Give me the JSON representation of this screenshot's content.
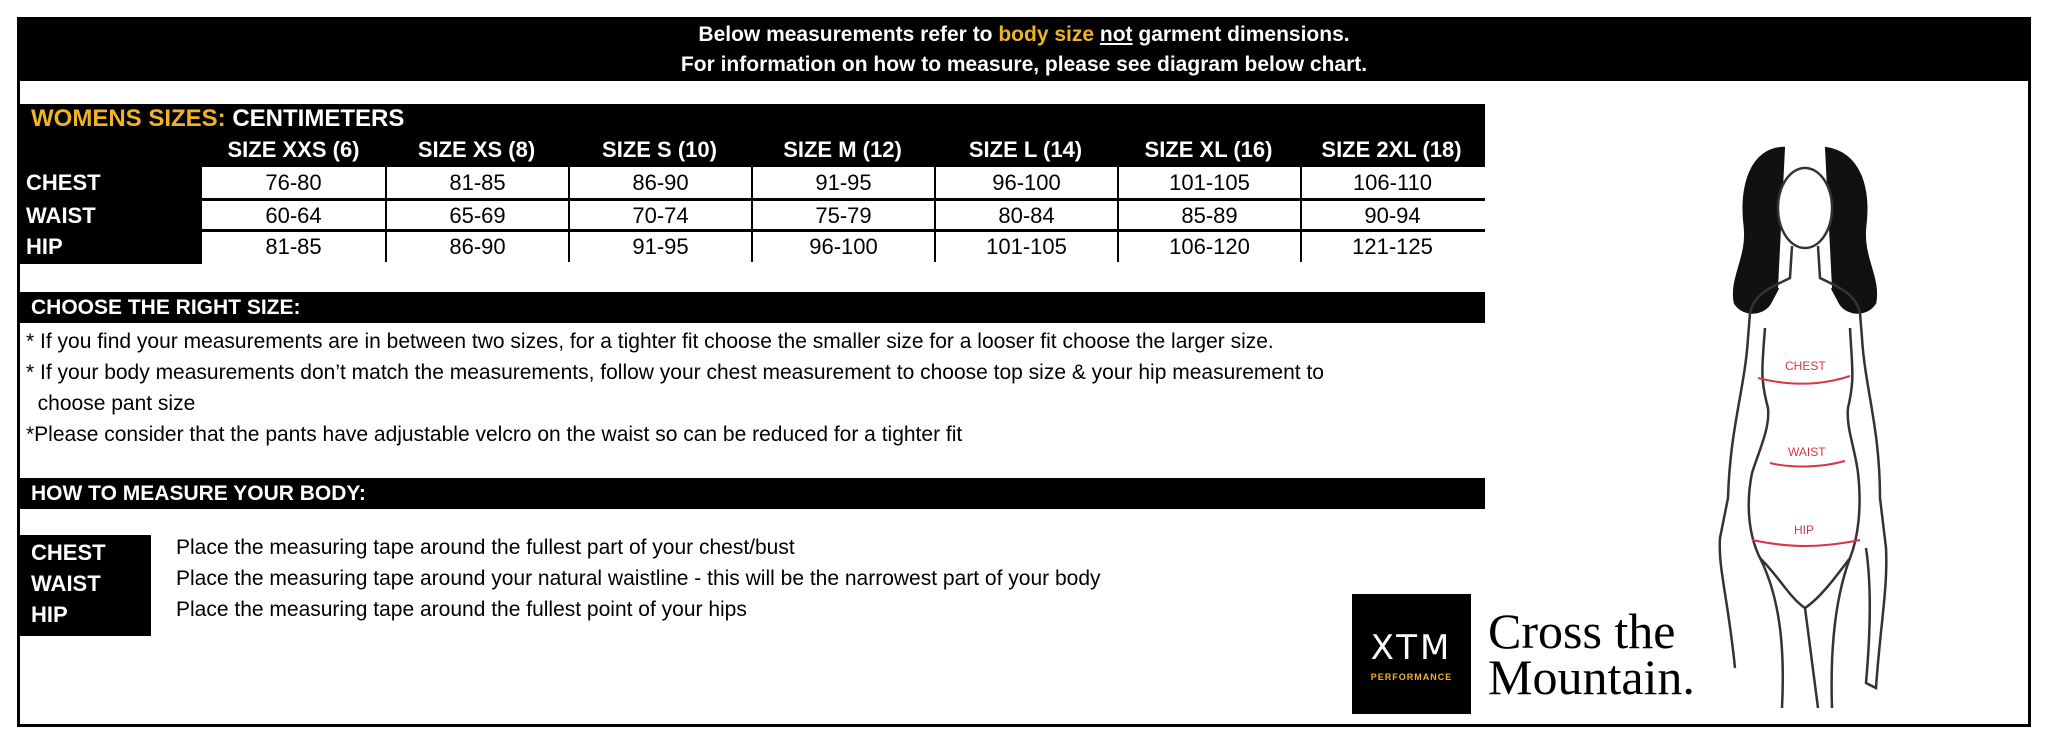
{
  "top": {
    "line1_a": "Below measurements refer to ",
    "line1_gold": "body size",
    "line1_b": " ",
    "line1_ul": "not",
    "line1_c": " garment dimensions.",
    "line2": "For information on how to measure, please see diagram below chart."
  },
  "table": {
    "title_gold": "WOMENS SIZES:",
    "title_white": " CENTIMETERS",
    "headers": [
      "SIZE XXS (6)",
      "SIZE XS (8)",
      "SIZE S (10)",
      "SIZE M (12)",
      "SIZE L (14)",
      "SIZE XL (16)",
      "SIZE 2XL (18)"
    ],
    "rows": [
      {
        "label": "CHEST",
        "values": [
          "76-80",
          "81-85",
          "86-90",
          "91-95",
          "96-100",
          "101-105",
          "106-110"
        ]
      },
      {
        "label": "WAIST",
        "values": [
          "60-64",
          "65-69",
          "70-74",
          "75-79",
          "80-84",
          "85-89",
          "90-94"
        ]
      },
      {
        "label": "HIP",
        "values": [
          "81-85",
          "86-90",
          "91-95",
          "96-100",
          "101-105",
          "106-120",
          "121-125"
        ]
      }
    ]
  },
  "choose": {
    "title": "CHOOSE THE RIGHT SIZE:",
    "lines": [
      "* If you find your measurements are in between two sizes, for a tighter fit choose the smaller size for a looser fit choose the larger size.",
      "* If your body measurements don’t match the measurements, follow your chest measurement to choose top size & your hip measurement to",
      "  choose pant size",
      "*Please consider that the pants have adjustable velcro on the waist so can be reduced for a tighter fit"
    ]
  },
  "measure": {
    "title": "HOW TO MEASURE YOUR BODY:",
    "items": [
      {
        "label": "CHEST",
        "text": "Place the measuring tape around the fullest part of your chest/bust"
      },
      {
        "label": "WAIST",
        "text": "Place the measuring tape around your natural waistline - this will be the narrowest part of your body"
      },
      {
        "label": "HIP",
        "text": "Place the measuring tape around the fullest point of your hips"
      }
    ]
  },
  "logo": {
    "mark": "XTM",
    "sub": "PERFORMANCE",
    "tagline1": "Cross the",
    "tagline2": "Mountain."
  },
  "figure": {
    "labels": [
      "CHEST",
      "WAIST",
      "HIP"
    ],
    "accent": "#d9344a"
  },
  "colors": {
    "gold": "#f0b323",
    "black": "#000000"
  }
}
